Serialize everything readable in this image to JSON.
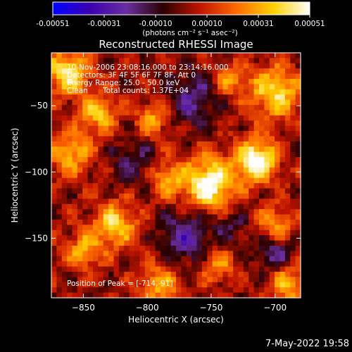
{
  "colorbar": {
    "ticks": [
      "-0.00051",
      "-0.00031",
      "-0.00010",
      "0.00010",
      "0.00031",
      "0.00051"
    ],
    "unit_label": "(photons cm⁻² s⁻¹ asec⁻²)",
    "colors": [
      "#0000ff",
      "#3a00b0",
      "#6a2ea0",
      "#2a0000",
      "#c01400",
      "#ff6a00",
      "#ffd000",
      "#ffffff"
    ]
  },
  "chart_data": {
    "type": "heatmap",
    "title": "Reconstructed RHESSI Image",
    "xlabel": "Heliocentric X (arcsec)",
    "ylabel": "Heliocentric Y (arcsec)",
    "xlim": [
      -875,
      -680
    ],
    "ylim": [
      -195,
      -10
    ],
    "x_ticks": [
      -850,
      -800,
      -750,
      -700
    ],
    "y_ticks": [
      -50,
      -100,
      -150
    ],
    "annotations": {
      "time": "10-Nov-2006 23:08:16.000 to 23:14:16.000",
      "detectors": "Detectors: 3F 4F 5F 6F 7F 8F, Att 0",
      "energy": "Energy Range: 25.0 - 50.0 keV",
      "clean": "Clean",
      "total_counts": "Total counts: 1.37E+04",
      "peak": "Position of Peak = [-714,-91]"
    },
    "peak": {
      "x": -714,
      "y": -91
    },
    "sources": [
      {
        "x": -751,
        "y": -109,
        "amp": 1.0,
        "sigma": 14
      },
      {
        "x": -714,
        "y": -91,
        "amp": 1.05,
        "sigma": 11
      },
      {
        "x": -700,
        "y": -40,
        "amp": 0.75,
        "sigma": 14
      },
      {
        "x": -862,
        "y": -25,
        "amp": 0.8,
        "sigma": 12
      },
      {
        "x": -838,
        "y": -55,
        "amp": 0.65,
        "sigma": 10
      },
      {
        "x": -860,
        "y": -85,
        "amp": 0.6,
        "sigma": 12
      },
      {
        "x": -795,
        "y": -60,
        "amp": 0.55,
        "sigma": 9
      },
      {
        "x": -785,
        "y": -105,
        "amp": 0.55,
        "sigma": 10
      },
      {
        "x": -825,
        "y": -140,
        "amp": 0.7,
        "sigma": 12
      },
      {
        "x": -850,
        "y": -160,
        "amp": 0.55,
        "sigma": 10
      },
      {
        "x": -790,
        "y": -185,
        "amp": 0.55,
        "sigma": 12
      },
      {
        "x": -745,
        "y": -170,
        "amp": 0.45,
        "sigma": 10
      },
      {
        "x": -700,
        "y": -140,
        "amp": 0.55,
        "sigma": 10
      },
      {
        "x": -690,
        "y": -185,
        "amp": 0.6,
        "sigma": 10
      },
      {
        "x": -735,
        "y": -30,
        "amp": 0.45,
        "sigma": 9
      },
      {
        "x": -765,
        "y": -45,
        "amp": -0.45,
        "sigma": 14
      },
      {
        "x": -770,
        "y": -150,
        "amp": -0.55,
        "sigma": 14
      },
      {
        "x": -700,
        "y": -160,
        "amp": -0.5,
        "sigma": 10
      },
      {
        "x": -810,
        "y": -95,
        "amp": -0.35,
        "sigma": 12
      },
      {
        "x": -735,
        "y": -140,
        "amp": -0.3,
        "sigma": 10
      }
    ]
  },
  "footer": {
    "timestamp": "7-May-2022 19:58"
  }
}
